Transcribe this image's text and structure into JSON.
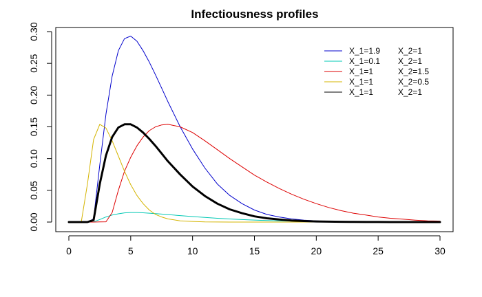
{
  "chart_data": {
    "type": "line",
    "title": "Infectiousness profiles",
    "xlabel": "",
    "ylabel": "",
    "xlim": [
      0,
      30
    ],
    "ylim": [
      0,
      0.3
    ],
    "x_ticks": [
      "0",
      "5",
      "10",
      "15",
      "20",
      "25",
      "30"
    ],
    "x_tick_values": [
      0,
      5,
      10,
      15,
      20,
      25,
      30
    ],
    "y_ticks": [
      "0.00",
      "0.05",
      "0.10",
      "0.15",
      "0.20",
      "0.25",
      "0.30"
    ],
    "y_tick_values": [
      0,
      0.05,
      0.1,
      0.15,
      0.2,
      0.25,
      0.3
    ],
    "grid": false,
    "legend_position": "top-right",
    "x": [
      0,
      1,
      1.5,
      2,
      2.5,
      3,
      3.5,
      4,
      4.5,
      5,
      5.5,
      6,
      6.5,
      7,
      7.5,
      8,
      9,
      10,
      11,
      12,
      13,
      14,
      15,
      16,
      17,
      18,
      19,
      20,
      21,
      22,
      23,
      24,
      25,
      26,
      27,
      28,
      29,
      30
    ],
    "series": [
      {
        "legend_x1": "X_1=1.9",
        "legend_x2": "X_2=1",
        "color": "#0000cc",
        "width": 1,
        "values": [
          0,
          0,
          0,
          0.005,
          0.09,
          0.17,
          0.23,
          0.27,
          0.289,
          0.293,
          0.285,
          0.27,
          0.252,
          0.232,
          0.211,
          0.19,
          0.15,
          0.115,
          0.085,
          0.06,
          0.042,
          0.029,
          0.019,
          0.012,
          0.008,
          0.005,
          0.003,
          0.002,
          0.001,
          0.001,
          0.0005,
          0.0003,
          0.0002,
          0.0001,
          0,
          0,
          0,
          0
        ]
      },
      {
        "legend_x1": "X_1=0.1",
        "legend_x2": "X_2=1",
        "color": "#00c8b4",
        "width": 1,
        "values": [
          0,
          0,
          0,
          0.0003,
          0.004,
          0.008,
          0.011,
          0.013,
          0.0145,
          0.015,
          0.015,
          0.0146,
          0.014,
          0.0133,
          0.0126,
          0.0118,
          0.0102,
          0.0087,
          0.0073,
          0.006,
          0.0049,
          0.0039,
          0.0031,
          0.0024,
          0.0019,
          0.0015,
          0.0011,
          0.0008,
          0.0006,
          0.0005,
          0.0003,
          0.0002,
          0.0002,
          0.0001,
          0,
          0,
          0,
          0
        ]
      },
      {
        "legend_x1": "X_1=1",
        "legend_x2": "X_2=1.5",
        "color": "#dd0000",
        "width": 1,
        "values": [
          0,
          0,
          0,
          0,
          0.0003,
          0.0004,
          0.015,
          0.05,
          0.08,
          0.102,
          0.12,
          0.134,
          0.144,
          0.15,
          0.153,
          0.154,
          0.15,
          0.141,
          0.128,
          0.114,
          0.1,
          0.087,
          0.074,
          0.063,
          0.053,
          0.044,
          0.036,
          0.029,
          0.023,
          0.018,
          0.014,
          0.011,
          0.008,
          0.006,
          0.0045,
          0.003,
          0.002,
          0.0015
        ]
      },
      {
        "legend_x1": "X_1=1",
        "legend_x2": "X_2=0.5",
        "color": "#d4b400",
        "width": 1,
        "values": [
          0,
          0,
          0.06,
          0.13,
          0.154,
          0.148,
          0.128,
          0.104,
          0.08,
          0.059,
          0.042,
          0.029,
          0.019,
          0.012,
          0.008,
          0.005,
          0.002,
          0.001,
          0.0003,
          0.0001,
          0,
          0,
          0,
          0,
          0,
          0,
          0,
          0,
          0,
          0,
          0,
          0,
          0,
          0,
          0,
          0,
          0,
          0
        ]
      },
      {
        "legend_x1": "X_1=1",
        "legend_x2": "X_2=1",
        "color": "#000000",
        "width": 3,
        "values": [
          0,
          0,
          0,
          0.003,
          0.06,
          0.105,
          0.134,
          0.149,
          0.154,
          0.154,
          0.149,
          0.141,
          0.131,
          0.12,
          0.108,
          0.096,
          0.075,
          0.056,
          0.041,
          0.029,
          0.02,
          0.014,
          0.009,
          0.006,
          0.004,
          0.0025,
          0.0016,
          0.001,
          0.0006,
          0.0004,
          0.0002,
          0.0001,
          0.0001,
          0,
          0,
          0,
          0,
          0
        ]
      }
    ]
  }
}
